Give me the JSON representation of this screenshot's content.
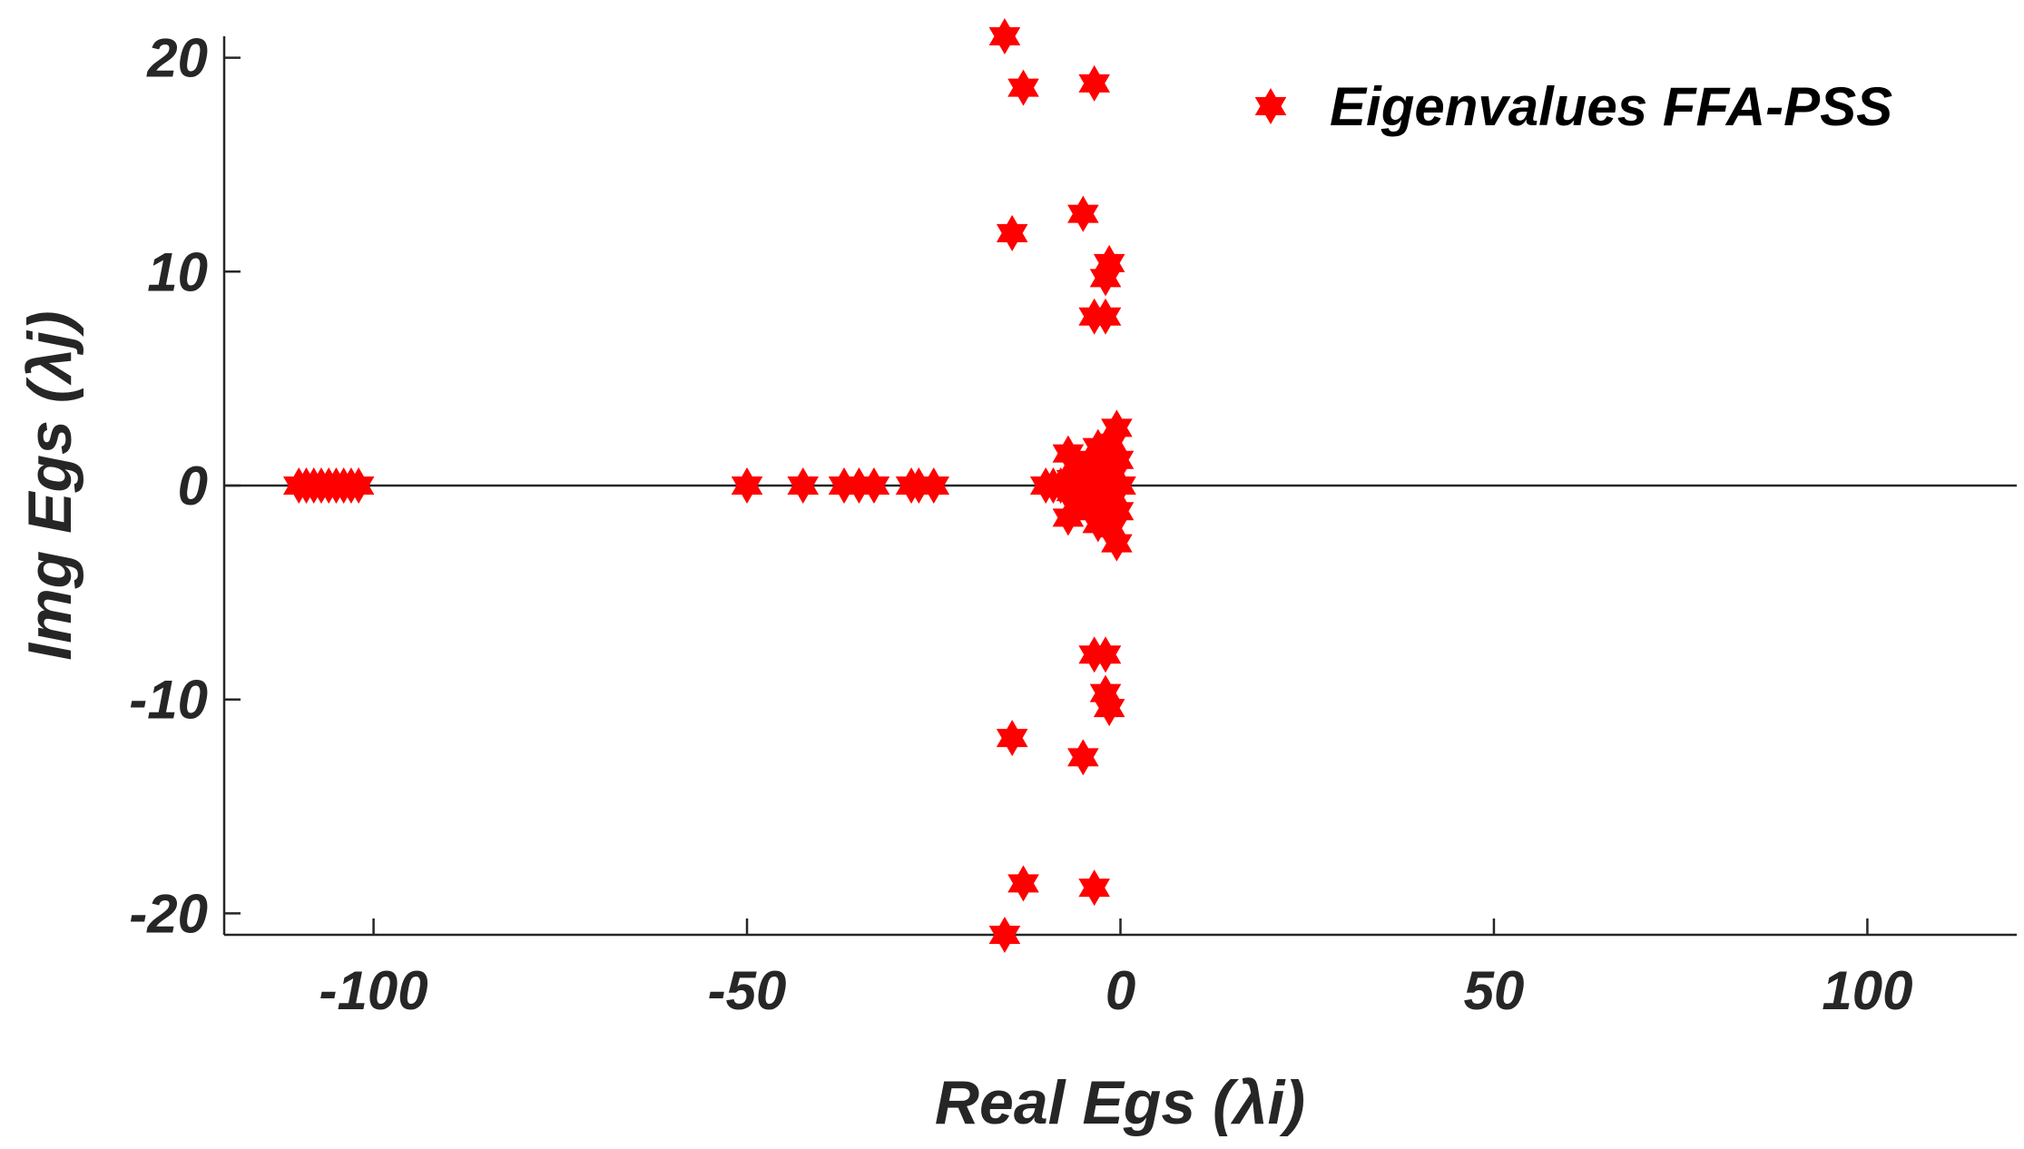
{
  "chart_data": {
    "type": "scatter",
    "title": "",
    "xlabel": "Real Egs (λi)",
    "ylabel": "Img Egs (λj)",
    "xlim": [
      -120,
      120
    ],
    "ylim": [
      -21,
      21
    ],
    "xticks": [
      -100,
      -50,
      0,
      50,
      100
    ],
    "yticks": [
      -20,
      -10,
      0,
      10,
      20
    ],
    "zero_line": true,
    "legend": {
      "position": "top-right",
      "box": false
    },
    "series": [
      {
        "name": "Eigenvalues FFA-PSS",
        "marker": "hexagram",
        "color": "#ff0000",
        "points": [
          [
            -110,
            0
          ],
          [
            -109,
            0
          ],
          [
            -108,
            0
          ],
          [
            -107,
            0
          ],
          [
            -106,
            0
          ],
          [
            -105,
            0
          ],
          [
            -104,
            0
          ],
          [
            -103,
            0
          ],
          [
            -102,
            0
          ],
          [
            -50,
            0
          ],
          [
            -42.5,
            0
          ],
          [
            -37,
            0
          ],
          [
            -35,
            0
          ],
          [
            -33,
            0
          ],
          [
            -28,
            0
          ],
          [
            -27,
            0
          ],
          [
            -25,
            0
          ],
          [
            -15.5,
            21
          ],
          [
            -15.5,
            -21
          ],
          [
            -13,
            18.6
          ],
          [
            -13,
            -18.6
          ],
          [
            -3.5,
            18.8
          ],
          [
            -3.5,
            -18.8
          ],
          [
            -14.5,
            11.8
          ],
          [
            -14.5,
            -11.8
          ],
          [
            -5,
            12.7
          ],
          [
            -5,
            -12.7
          ],
          [
            -1.5,
            10.4
          ],
          [
            -1.5,
            -10.4
          ],
          [
            -2,
            9.7
          ],
          [
            -2,
            -9.7
          ],
          [
            -3.5,
            7.9
          ],
          [
            -3.5,
            -7.9
          ],
          [
            -2,
            7.9
          ],
          [
            -2,
            -7.9
          ],
          [
            -0.5,
            2.7
          ],
          [
            -0.5,
            -2.7
          ],
          [
            -10,
            0
          ],
          [
            -9,
            0
          ],
          [
            -8,
            0
          ],
          [
            -7,
            1.5
          ],
          [
            -7,
            -1.5
          ],
          [
            -6,
            1
          ],
          [
            -6,
            -1
          ],
          [
            -6.5,
            0.3
          ],
          [
            -6.5,
            -0.3
          ],
          [
            -5,
            0.5
          ],
          [
            -5,
            -0.5
          ],
          [
            -5,
            0
          ],
          [
            -4,
            1.2
          ],
          [
            -4,
            -1.2
          ],
          [
            -4,
            0
          ],
          [
            -3,
            1.8
          ],
          [
            -3,
            -1.8
          ],
          [
            -3,
            0.6
          ],
          [
            -3,
            -0.6
          ],
          [
            -3,
            0
          ],
          [
            -2,
            1
          ],
          [
            -2,
            -1
          ],
          [
            -2,
            0.3
          ],
          [
            -2,
            -0.3
          ],
          [
            -1.2,
            2
          ],
          [
            -1.2,
            -2
          ],
          [
            -1,
            0.5
          ],
          [
            -1,
            -0.5
          ],
          [
            0,
            0
          ],
          [
            -0.3,
            1.2
          ],
          [
            -0.3,
            -1.2
          ],
          [
            -1.5,
            0
          ]
        ]
      }
    ]
  }
}
